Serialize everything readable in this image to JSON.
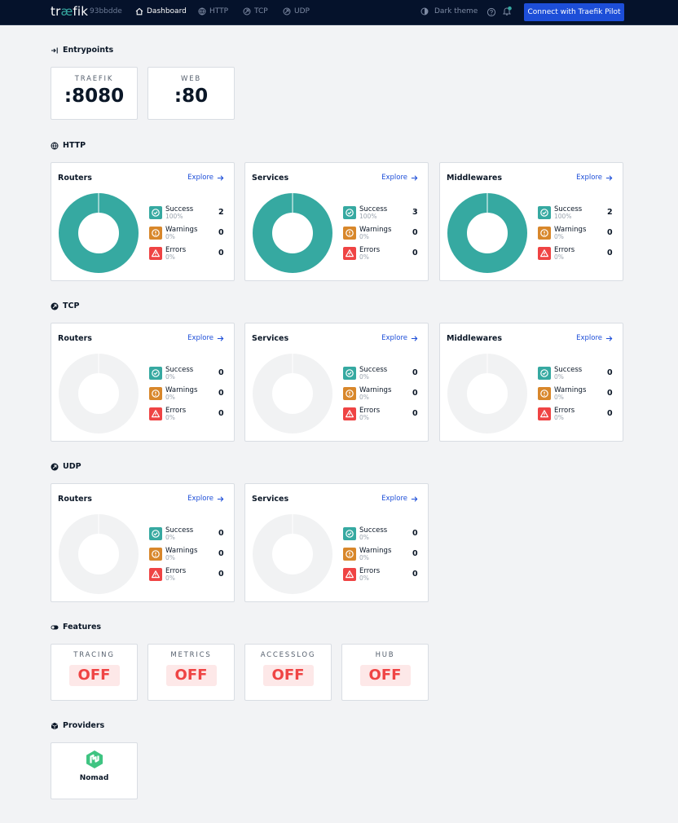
{
  "header": {
    "logo_prefix": "tr",
    "logo_ae": "æ",
    "logo_suffix": "fik",
    "version": "93bbdde",
    "nav": [
      {
        "label": "Dashboard",
        "icon": "home-icon",
        "active": true
      },
      {
        "label": "HTTP",
        "icon": "globe-icon",
        "active": false
      },
      {
        "label": "TCP",
        "icon": "tcp-icon",
        "active": false
      },
      {
        "label": "UDP",
        "icon": "udp-icon",
        "active": false
      }
    ],
    "theme_label": "Dark theme",
    "pilot_button": "Connect with Traefik Pilot"
  },
  "entrypoints": {
    "title": "Entrypoints",
    "items": [
      {
        "name": "TRAEFIK",
        "port": ":8080"
      },
      {
        "name": "WEB",
        "port": ":80"
      }
    ]
  },
  "http": {
    "title": "HTTP",
    "cards": [
      {
        "title": "Routers",
        "explore": "Explore",
        "success": 2,
        "success_pct": "100%",
        "warnings": 0,
        "warnings_pct": "0%",
        "errors": 0,
        "errors_pct": "0%"
      },
      {
        "title": "Services",
        "explore": "Explore",
        "success": 3,
        "success_pct": "100%",
        "warnings": 0,
        "warnings_pct": "0%",
        "errors": 0,
        "errors_pct": "0%"
      },
      {
        "title": "Middlewares",
        "explore": "Explore",
        "success": 2,
        "success_pct": "100%",
        "warnings": 0,
        "warnings_pct": "0%",
        "errors": 0,
        "errors_pct": "0%"
      }
    ]
  },
  "tcp": {
    "title": "TCP",
    "cards": [
      {
        "title": "Routers",
        "explore": "Explore",
        "success": 0,
        "success_pct": "0%",
        "warnings": 0,
        "warnings_pct": "0%",
        "errors": 0,
        "errors_pct": "0%"
      },
      {
        "title": "Services",
        "explore": "Explore",
        "success": 0,
        "success_pct": "0%",
        "warnings": 0,
        "warnings_pct": "0%",
        "errors": 0,
        "errors_pct": "0%"
      },
      {
        "title": "Middlewares",
        "explore": "Explore",
        "success": 0,
        "success_pct": "0%",
        "warnings": 0,
        "warnings_pct": "0%",
        "errors": 0,
        "errors_pct": "0%"
      }
    ]
  },
  "udp": {
    "title": "UDP",
    "cards": [
      {
        "title": "Routers",
        "explore": "Explore",
        "success": 0,
        "success_pct": "0%",
        "warnings": 0,
        "warnings_pct": "0%",
        "errors": 0,
        "errors_pct": "0%"
      },
      {
        "title": "Services",
        "explore": "Explore",
        "success": 0,
        "success_pct": "0%",
        "warnings": 0,
        "warnings_pct": "0%",
        "errors": 0,
        "errors_pct": "0%"
      }
    ]
  },
  "legend_labels": {
    "success": "Success",
    "warnings": "Warnings",
    "errors": "Errors"
  },
  "features": {
    "title": "Features",
    "items": [
      {
        "name": "TRACING",
        "value": "OFF"
      },
      {
        "name": "METRICS",
        "value": "OFF"
      },
      {
        "name": "ACCESSLOG",
        "value": "OFF"
      },
      {
        "name": "HUB",
        "value": "OFF"
      }
    ]
  },
  "providers": {
    "title": "Providers",
    "items": [
      {
        "name": "Nomad",
        "icon": "nomad-logo-icon"
      }
    ]
  },
  "colors": {
    "success": "#36a9a1",
    "warning": "#d8872b",
    "error": "#ef4444",
    "accent": "#1d4ed8",
    "empty": "#f1f2f3"
  }
}
